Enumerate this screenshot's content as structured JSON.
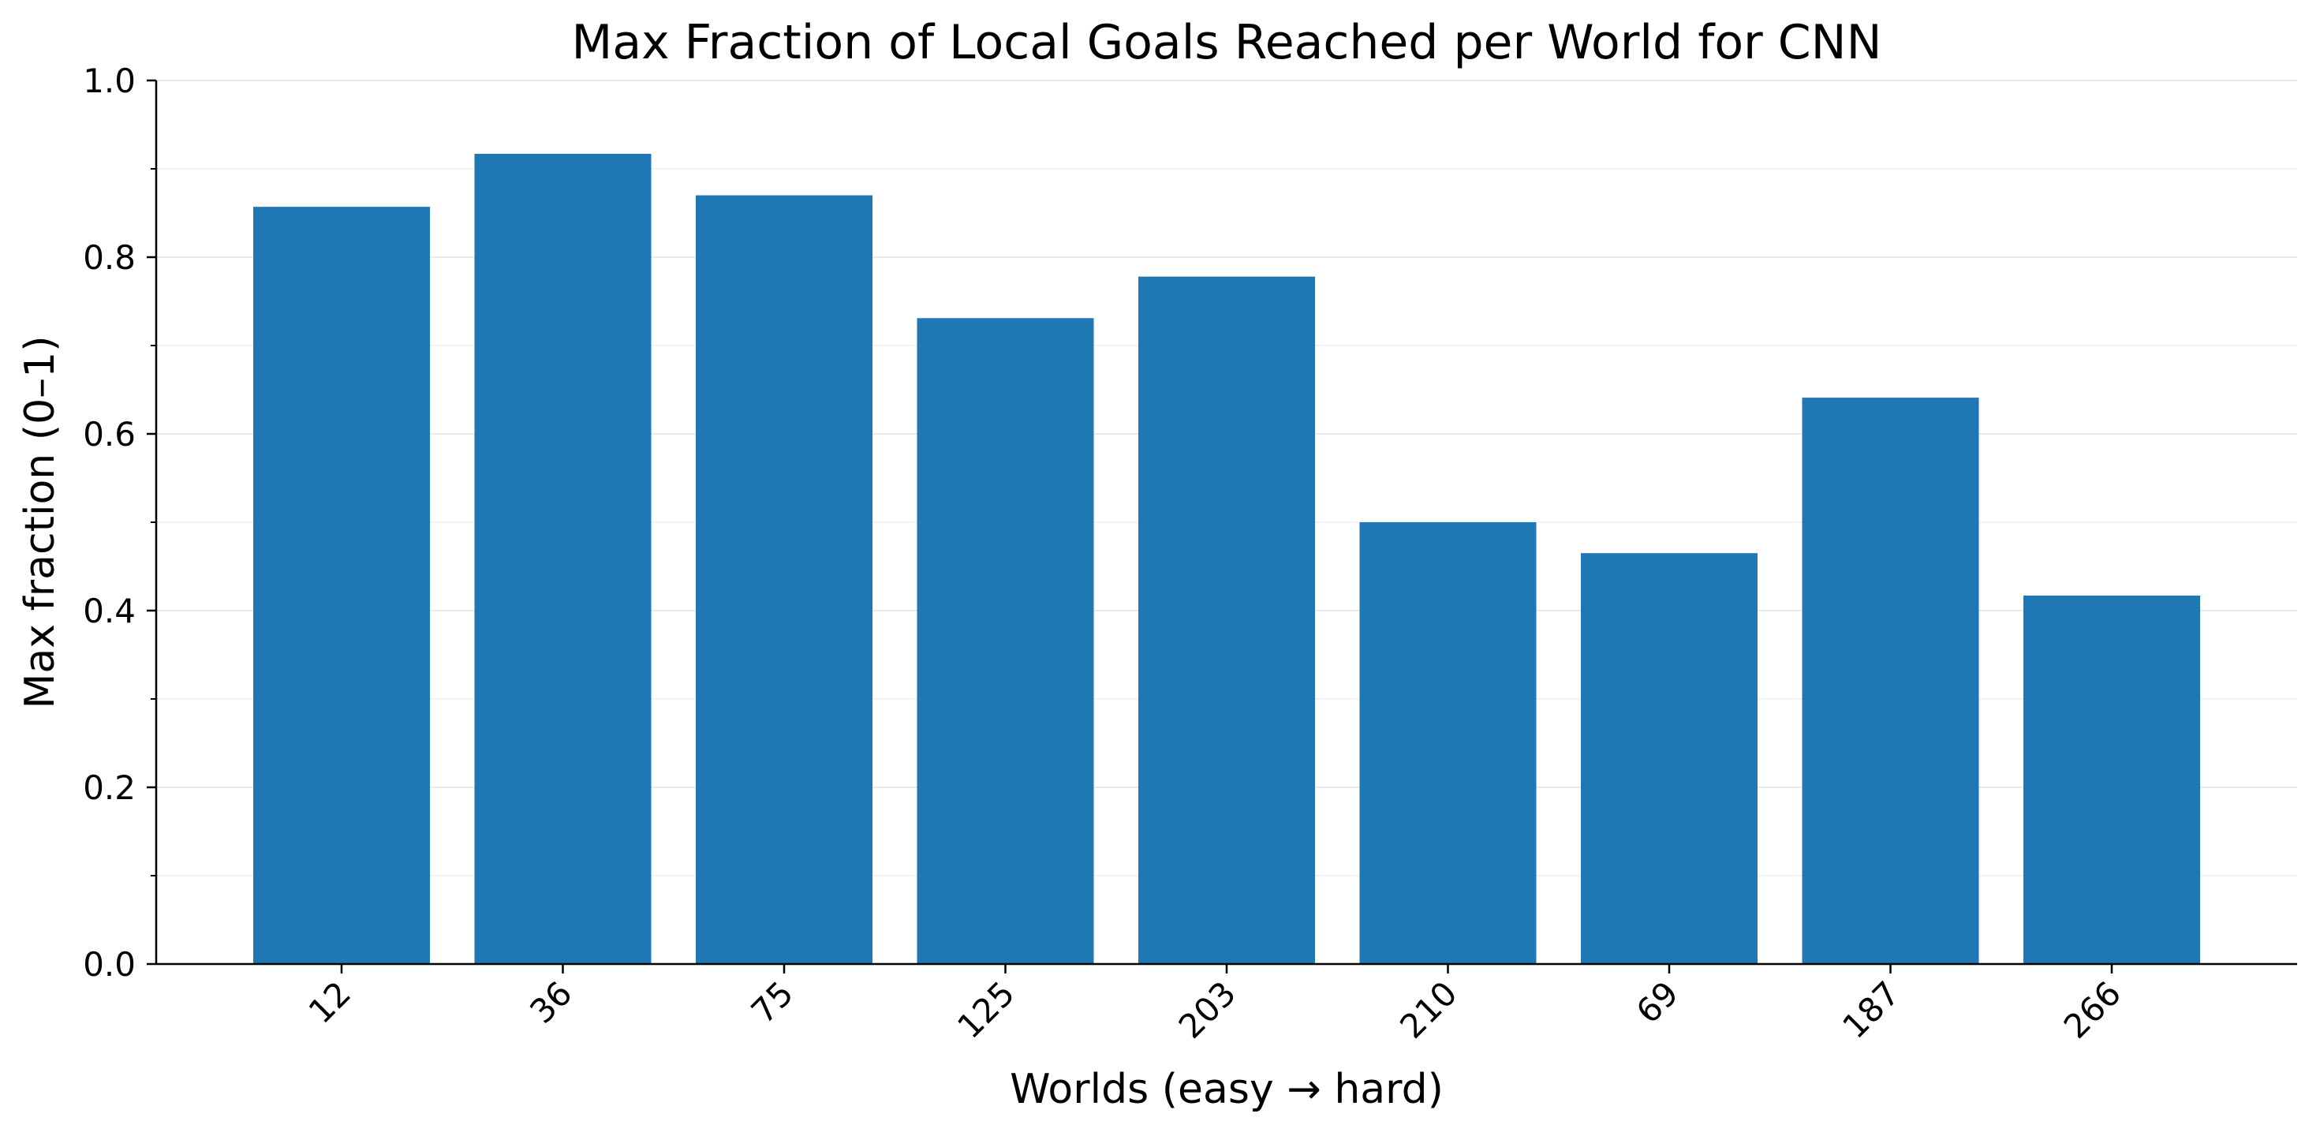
{
  "chart_data": {
    "type": "bar",
    "title": "Max Fraction of Local Goals Reached per World for CNN",
    "xlabel": "Worlds (easy → hard)",
    "ylabel": "Max fraction (0–1)",
    "categories": [
      "12",
      "36",
      "75",
      "125",
      "203",
      "210",
      "69",
      "187",
      "266"
    ],
    "values": [
      0.857,
      0.917,
      0.87,
      0.731,
      0.778,
      0.5,
      0.465,
      0.641,
      0.417
    ],
    "ylim": [
      0,
      1.0
    ],
    "yticks": [
      "0.0",
      "0.2",
      "0.4",
      "0.6",
      "0.8",
      "1.0"
    ],
    "minor_yticks": [
      0.1,
      0.3,
      0.5,
      0.7,
      0.9
    ],
    "grid": true,
    "legend": false,
    "bar_color": "#1f77b4",
    "grid_color": "#ebebeb"
  }
}
